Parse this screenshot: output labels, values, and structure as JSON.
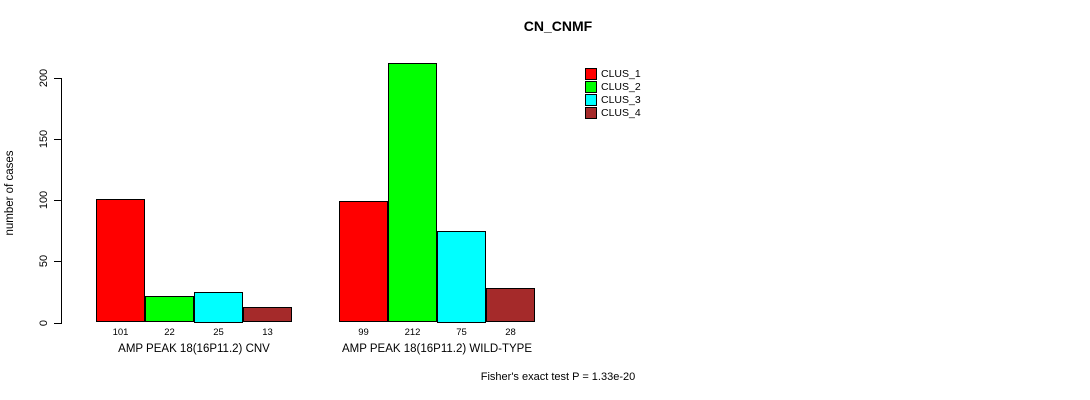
{
  "chart_data": {
    "type": "bar",
    "title": "CN_CNMF",
    "ylabel": "number of cases",
    "xlabel": "",
    "ylim": [
      0,
      200
    ],
    "yticks": [
      0,
      50,
      100,
      150,
      200
    ],
    "grid": false,
    "legend_position": "top-right",
    "bar_value_labels": true,
    "groups": [
      "AMP PEAK 18(16P11.2) CNV",
      "AMP PEAK 18(16P11.2) WILD-TYPE"
    ],
    "series": [
      {
        "name": "CLUS_1",
        "color": "#ff0000",
        "values": [
          101,
          99
        ]
      },
      {
        "name": "CLUS_2",
        "color": "#00ff00",
        "values": [
          22,
          212
        ]
      },
      {
        "name": "CLUS_3",
        "color": "#00ffff",
        "values": [
          25,
          75
        ]
      },
      {
        "name": "CLUS_4",
        "color": "#a52a2a",
        "values": [
          13,
          28
        ]
      }
    ],
    "annotation": "Fisher's exact test P = 1.33e-20"
  }
}
